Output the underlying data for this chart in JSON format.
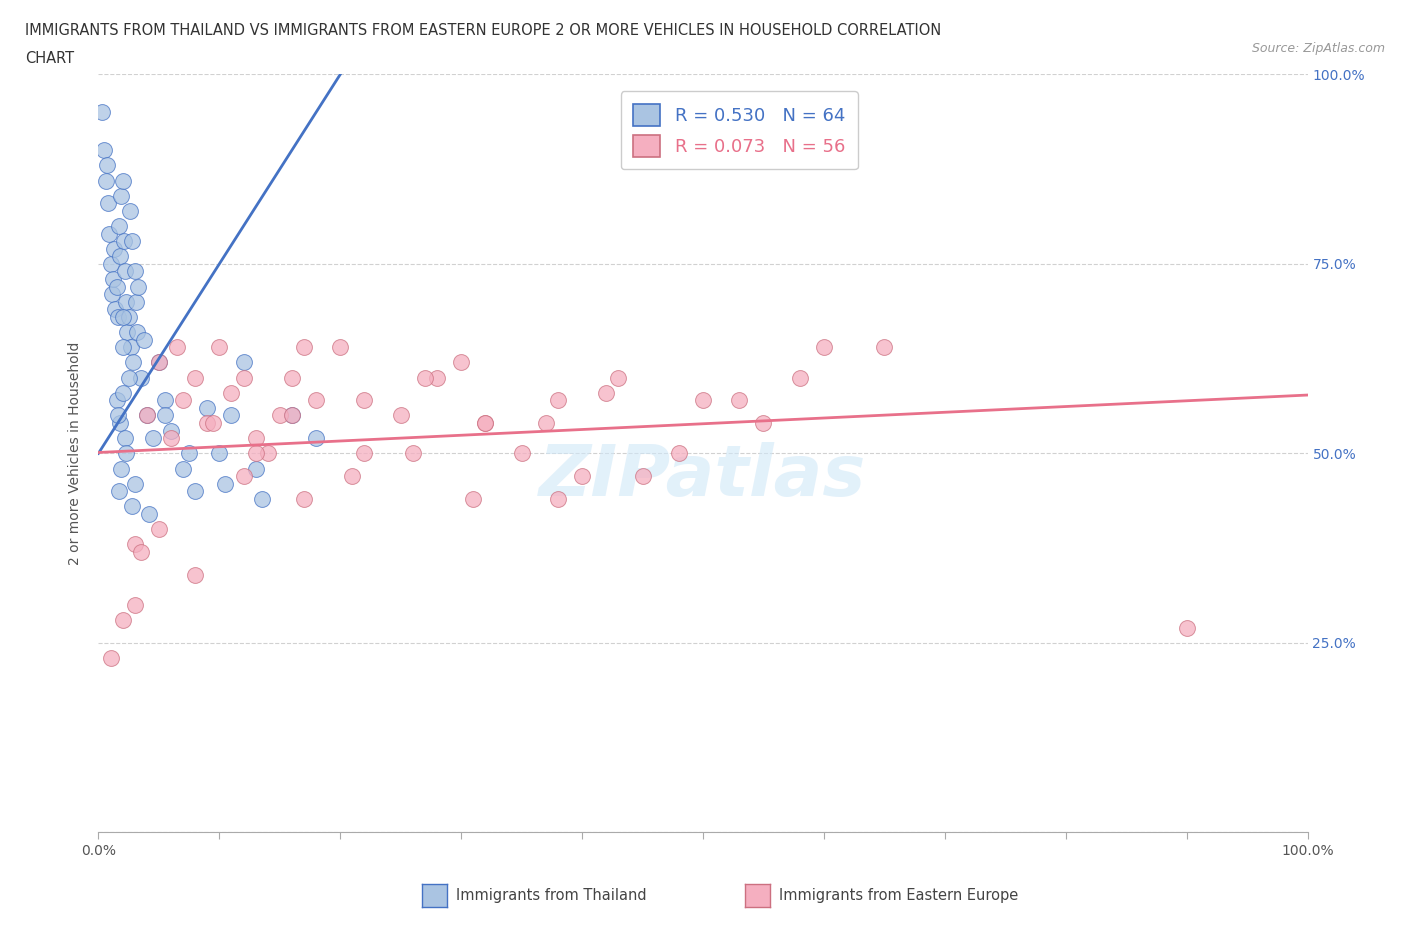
{
  "title_line1": "IMMIGRANTS FROM THAILAND VS IMMIGRANTS FROM EASTERN EUROPE 2 OR MORE VEHICLES IN HOUSEHOLD CORRELATION",
  "title_line2": "CHART",
  "source": "Source: ZipAtlas.com",
  "ylabel": "2 or more Vehicles in Household",
  "R_thailand": 0.53,
  "N_thailand": 64,
  "R_eastern_europe": 0.073,
  "N_eastern_europe": 56,
  "thailand_color": "#aac4e2",
  "eastern_europe_color": "#f5afc0",
  "thailand_line_color": "#4472c4",
  "eastern_europe_line_color": "#e8708a",
  "background_color": "#ffffff",
  "grid_color": "#cccccc",
  "watermark": "ZIPatlas",
  "xlim": [
    0,
    100
  ],
  "ylim": [
    0,
    100
  ],
  "thailand_x": [
    0.3,
    0.5,
    0.6,
    0.7,
    0.8,
    0.9,
    1.0,
    1.1,
    1.2,
    1.3,
    1.4,
    1.5,
    1.6,
    1.7,
    1.8,
    1.9,
    2.0,
    2.1,
    2.2,
    2.3,
    2.4,
    2.5,
    2.6,
    2.7,
    2.8,
    2.9,
    3.0,
    3.1,
    3.2,
    3.3,
    3.5,
    3.8,
    4.0,
    4.5,
    5.0,
    5.5,
    6.0,
    7.0,
    8.0,
    9.0,
    10.0,
    11.0,
    12.0,
    13.0,
    2.0,
    2.0,
    2.5,
    1.5,
    1.8,
    2.2,
    2.0,
    1.9,
    1.7,
    2.3,
    1.6,
    3.0,
    2.8,
    4.2,
    5.5,
    7.5,
    10.5,
    13.5,
    16.0,
    18.0
  ],
  "thailand_y": [
    95,
    90,
    86,
    88,
    83,
    79,
    75,
    71,
    73,
    77,
    69,
    72,
    68,
    80,
    76,
    84,
    86,
    78,
    74,
    70,
    66,
    68,
    82,
    64,
    78,
    62,
    74,
    70,
    66,
    72,
    60,
    65,
    55,
    52,
    62,
    57,
    53,
    48,
    45,
    56,
    50,
    55,
    62,
    48,
    68,
    64,
    60,
    57,
    54,
    52,
    58,
    48,
    45,
    50,
    55,
    46,
    43,
    42,
    55,
    50,
    46,
    44,
    55,
    52
  ],
  "eastern_europe_x": [
    1.0,
    2.0,
    3.0,
    4.0,
    5.0,
    6.0,
    7.0,
    8.0,
    9.0,
    10.0,
    11.0,
    12.0,
    13.0,
    14.0,
    15.0,
    16.0,
    17.0,
    18.0,
    20.0,
    22.0,
    25.0,
    28.0,
    30.0,
    32.0,
    35.0,
    38.0,
    40.0,
    42.0,
    45.0,
    50.0,
    55.0,
    60.0,
    90.0,
    3.5,
    6.5,
    9.5,
    13.0,
    17.0,
    22.0,
    27.0,
    32.0,
    38.0,
    3.0,
    5.0,
    8.0,
    12.0,
    16.0,
    21.0,
    26.0,
    31.0,
    37.0,
    43.0,
    48.0,
    53.0,
    58.0,
    65.0
  ],
  "eastern_europe_y": [
    23,
    28,
    38,
    55,
    62,
    52,
    57,
    60,
    54,
    64,
    58,
    60,
    52,
    50,
    55,
    60,
    44,
    57,
    64,
    57,
    55,
    60,
    62,
    54,
    50,
    44,
    47,
    58,
    47,
    57,
    54,
    64,
    27,
    37,
    64,
    54,
    50,
    64,
    50,
    60,
    54,
    57,
    30,
    40,
    34,
    47,
    55,
    47,
    50,
    44,
    54,
    60,
    50,
    57,
    60,
    64
  ],
  "right_yticks": [
    25,
    50,
    75,
    100
  ],
  "right_yticklabels": [
    "25.0%",
    "50.0%",
    "75.0%",
    "100.0%"
  ]
}
